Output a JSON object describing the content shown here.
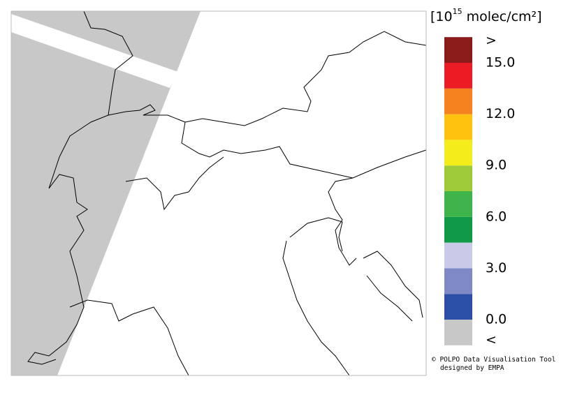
{
  "legend": {
    "unit_prefix": "[10",
    "unit_exponent": "15",
    "unit_suffix": " molec/cm²]",
    "lim": [
      0,
      15
    ],
    "ticks": [
      {
        "value": 0,
        "label": "0.0"
      },
      {
        "value": 3,
        "label": "3.0"
      },
      {
        "value": 6,
        "label": "6.0"
      },
      {
        "value": 9,
        "label": "9.0"
      },
      {
        "value": 12,
        "label": "12.0"
      },
      {
        "value": 15,
        "label": "15.0"
      }
    ],
    "colors": [
      "#2b4fa6",
      "#7f89c6",
      "#c9c9e8",
      "#109a48",
      "#3db34a",
      "#9fcb3b",
      "#f5ec1c",
      "#ffc20e",
      "#f5821f",
      "#ec1c24"
    ],
    "under_color": "#c8c8c8",
    "under_label": "<",
    "over_color": "#8b1a1a",
    "over_label": ">"
  },
  "credit": {
    "line1": "© POLPO Data Visualisation Tool",
    "line2": "designed by EMPA"
  }
}
